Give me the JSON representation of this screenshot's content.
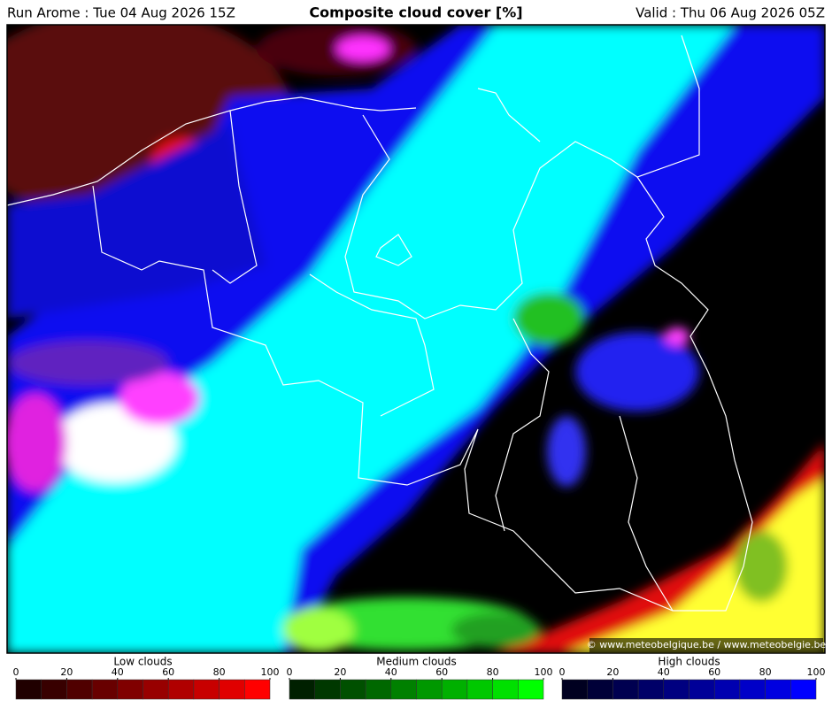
{
  "header": {
    "run": "Run Arome : Tue 04 Aug 2026 15Z",
    "title": "Composite cloud cover [%]",
    "valid": "Valid : Thu 06 Aug 2026 05Z"
  },
  "map": {
    "credit": "© www.meteobelgique.be / www.meteobelgie.be"
  },
  "legends": [
    {
      "label": "Low clouds",
      "ticks": [
        0,
        20,
        40,
        60,
        80,
        100
      ],
      "colors": [
        "#200000",
        "#380000",
        "#500000",
        "#680000",
        "#800000",
        "#980000",
        "#b00000",
        "#c80000",
        "#e00000",
        "#ff0000"
      ]
    },
    {
      "label": "Medium clouds",
      "ticks": [
        0,
        20,
        40,
        60,
        80,
        100
      ],
      "colors": [
        "#002000",
        "#003800",
        "#005000",
        "#006800",
        "#008000",
        "#009800",
        "#00b000",
        "#00c800",
        "#00e000",
        "#00ff00"
      ]
    },
    {
      "label": "High clouds",
      "ticks": [
        0,
        20,
        40,
        60,
        80,
        100
      ],
      "colors": [
        "#000020",
        "#000038",
        "#000050",
        "#000068",
        "#000080",
        "#000098",
        "#0000b0",
        "#0000c8",
        "#0000e0",
        "#0000ff"
      ]
    }
  ]
}
